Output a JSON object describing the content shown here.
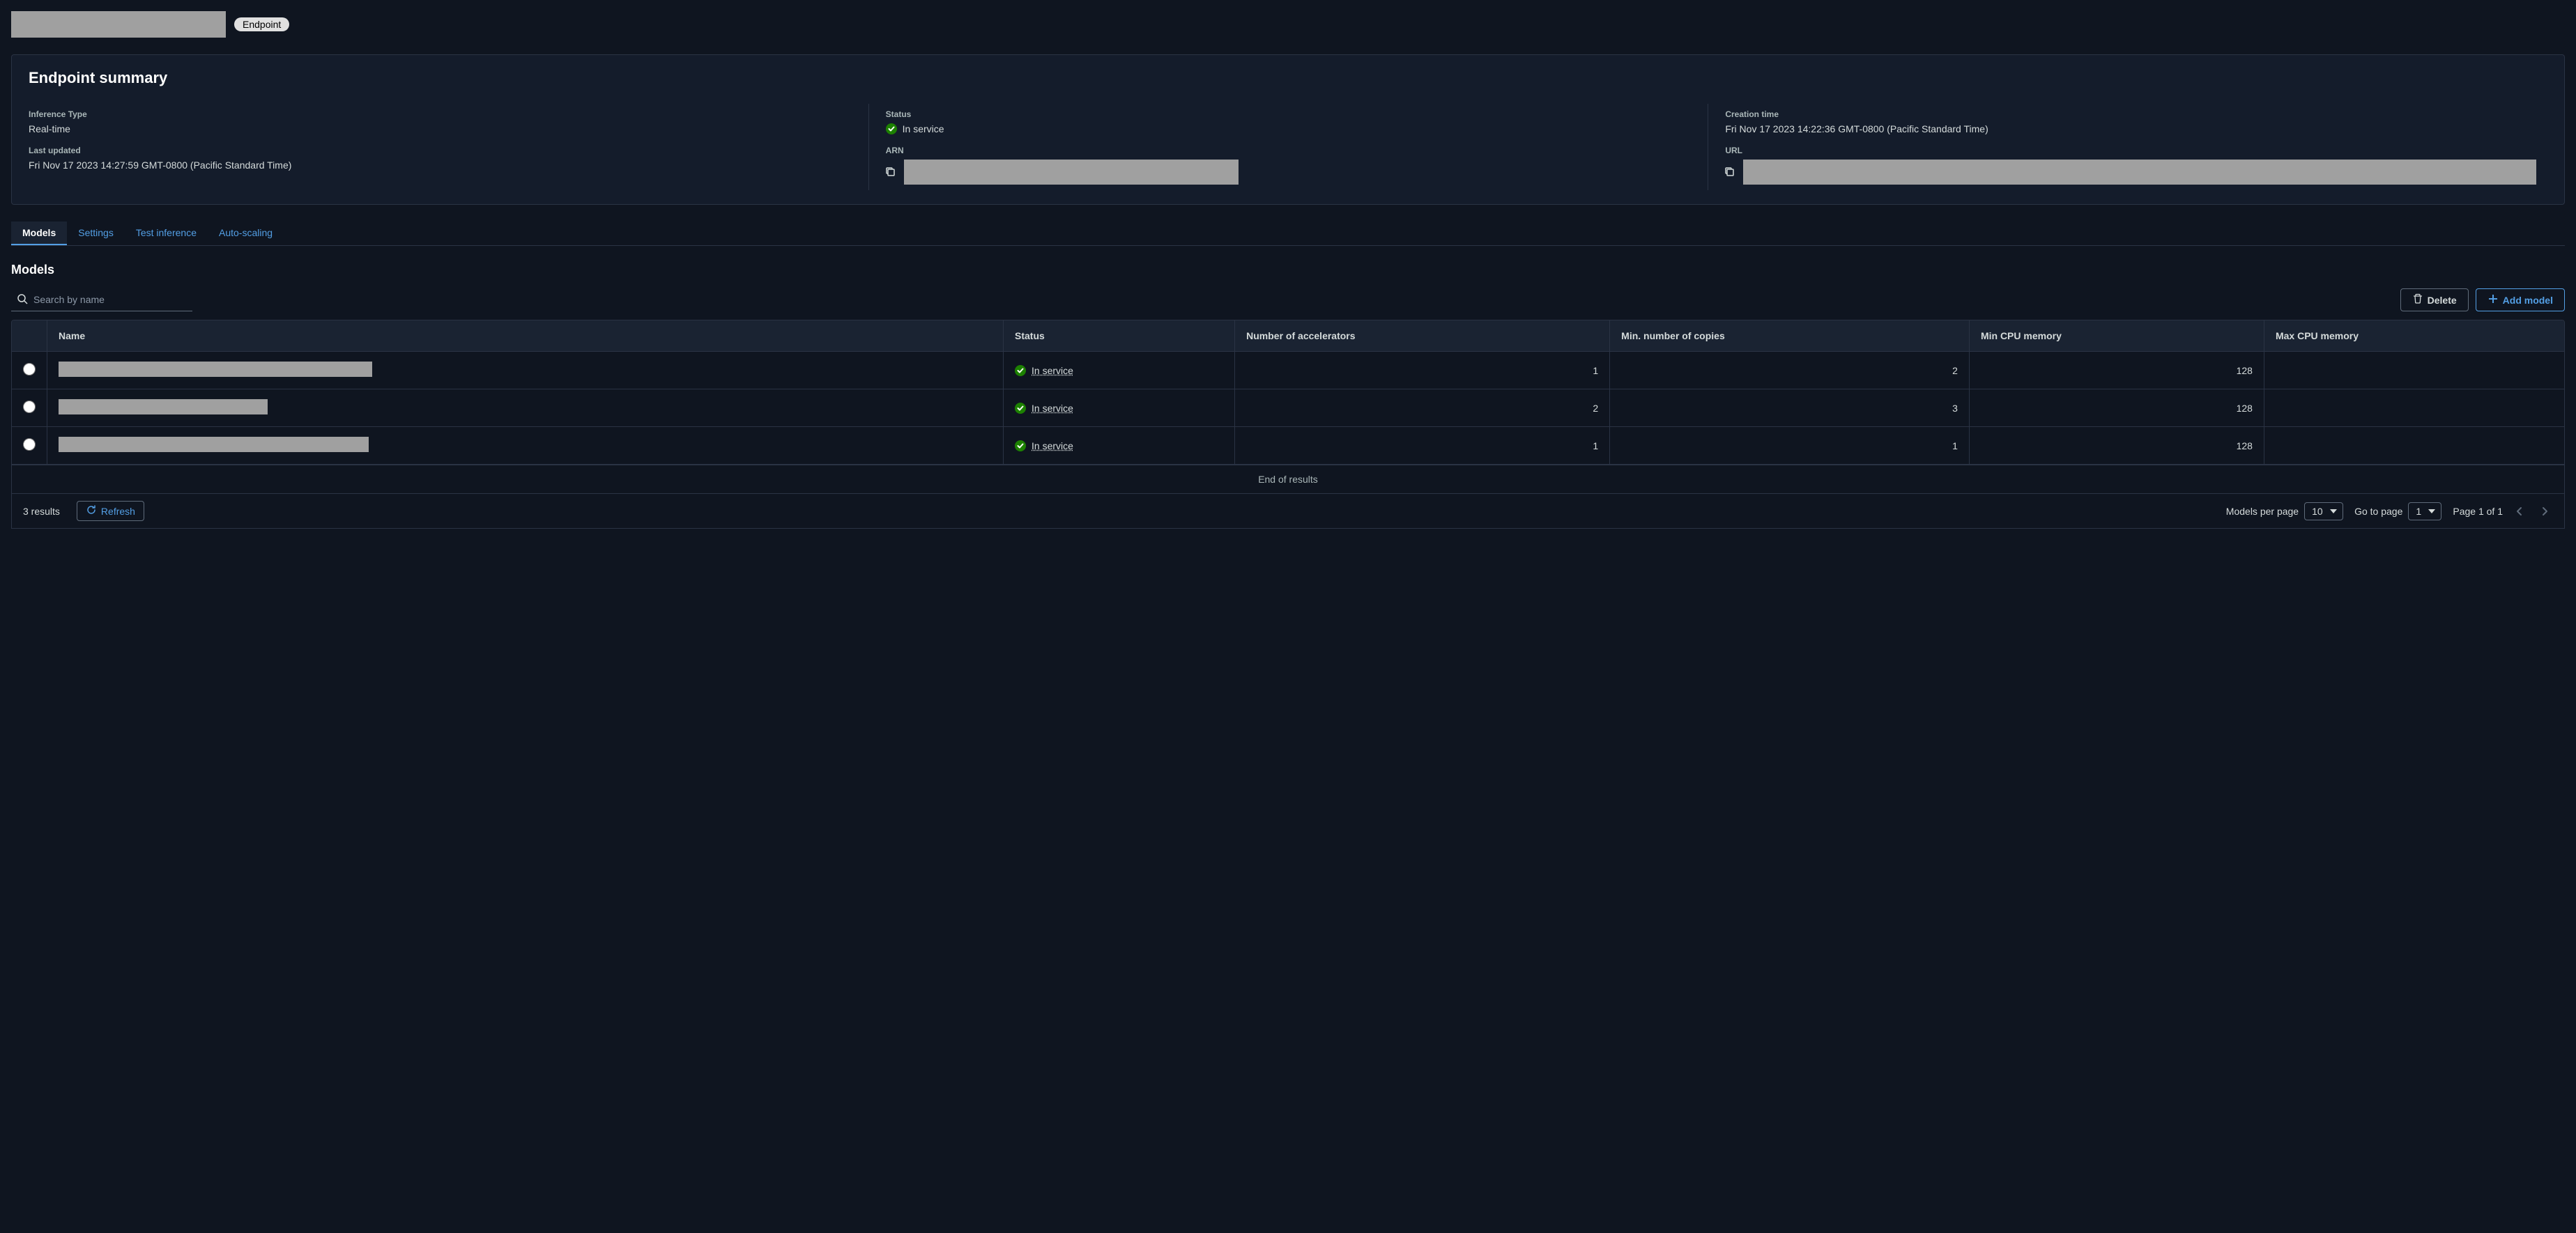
{
  "header": {
    "badge": "Endpoint"
  },
  "summary": {
    "title": "Endpoint summary",
    "fields": {
      "inference_type": {
        "label": "Inference Type",
        "value": "Real-time"
      },
      "status": {
        "label": "Status",
        "value": "In service"
      },
      "creation_time": {
        "label": "Creation time",
        "value": "Fri Nov 17 2023 14:22:36 GMT-0800 (Pacific Standard Time)"
      },
      "last_updated": {
        "label": "Last updated",
        "value": "Fri Nov 17 2023 14:27:59 GMT-0800 (Pacific Standard Time)"
      },
      "arn": {
        "label": "ARN"
      },
      "url": {
        "label": "URL"
      }
    }
  },
  "tabs": {
    "models": "Models",
    "settings": "Settings",
    "test_inference": "Test inference",
    "auto_scaling": "Auto-scaling"
  },
  "models_section": {
    "title": "Models",
    "search_placeholder": "Search by name",
    "delete_btn": "Delete",
    "add_btn": "Add model",
    "columns": {
      "name": "Name",
      "status": "Status",
      "accelerators": "Number of accelerators",
      "min_copies": "Min. number of copies",
      "min_cpu": "Min CPU memory",
      "max_cpu": "Max CPU memory"
    },
    "rows": [
      {
        "name_width": 450,
        "status": "In service",
        "accelerators": "1",
        "min_copies": "2",
        "min_cpu": "128",
        "max_cpu": ""
      },
      {
        "name_width": 300,
        "status": "In service",
        "accelerators": "2",
        "min_copies": "3",
        "min_cpu": "128",
        "max_cpu": ""
      },
      {
        "name_width": 445,
        "status": "In service",
        "accelerators": "1",
        "min_copies": "1",
        "min_cpu": "128",
        "max_cpu": ""
      }
    ],
    "end_text": "End of results"
  },
  "footer": {
    "results_count": "3 results",
    "refresh": "Refresh",
    "models_per_page_label": "Models per page",
    "models_per_page_value": "10",
    "go_to_page_label": "Go to page",
    "go_to_page_value": "1",
    "page_text": "Page 1 of 1"
  },
  "colors": {
    "background": "#0f1520",
    "card_bg": "#141c2b",
    "border": "#2a3344",
    "text": "#d5dbdb",
    "accent": "#539fe5",
    "success": "#1d8102",
    "redacted": "#a0a0a0"
  }
}
